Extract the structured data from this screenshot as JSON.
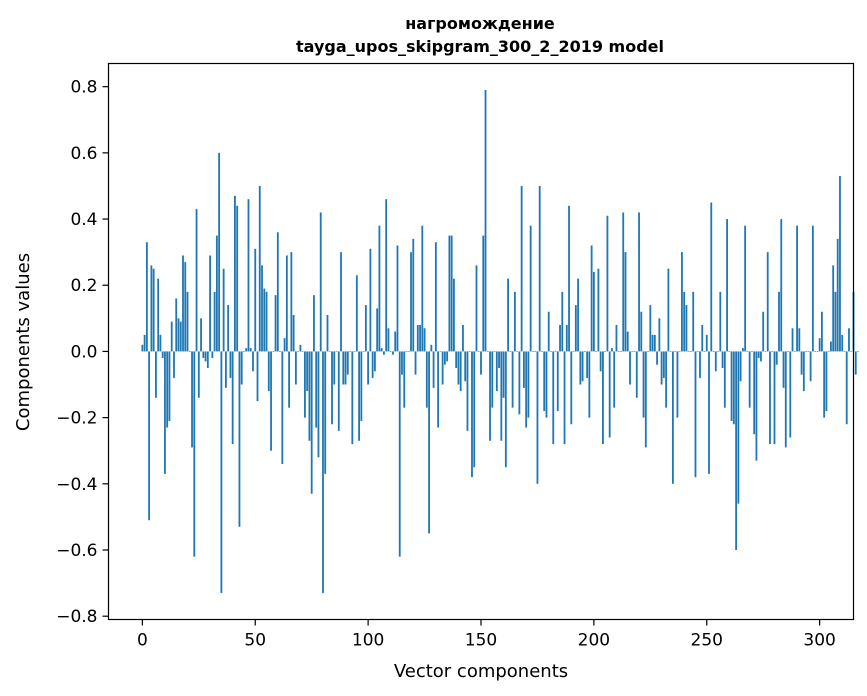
{
  "chart_data": {
    "type": "bar",
    "title_line1": "нагромождение",
    "title_line2": "tayga_upos_skipgram_300_2_2019 model",
    "xlabel": "Vector components",
    "ylabel": "Components values",
    "xlim": [
      -15,
      315
    ],
    "ylim": [
      -0.81,
      0.87
    ],
    "xticks": [
      0,
      50,
      100,
      150,
      200,
      250,
      300
    ],
    "xtick_labels": [
      "0",
      "50",
      "100",
      "150",
      "200",
      "250",
      "300"
    ],
    "yticks": [
      -0.8,
      -0.6,
      -0.4,
      -0.2,
      0.0,
      0.2,
      0.4,
      0.6,
      0.8
    ],
    "ytick_labels": [
      "−0.8",
      "−0.6",
      "−0.4",
      "−0.2",
      "0.0",
      "0.2",
      "0.4",
      "0.6",
      "0.8"
    ],
    "bar_color": "#1f77b4",
    "grid": false,
    "legend": "none",
    "values": [
      0.02,
      0.05,
      0.33,
      -0.51,
      0.26,
      0.25,
      -0.14,
      0.22,
      0.05,
      -0.02,
      -0.37,
      -0.23,
      -0.21,
      0.09,
      -0.08,
      0.16,
      0.1,
      0.09,
      0.29,
      0.27,
      0.18,
      0.0,
      -0.29,
      -0.62,
      0.43,
      -0.14,
      0.1,
      -0.02,
      -0.03,
      -0.05,
      0.29,
      -0.02,
      0.18,
      0.35,
      0.6,
      -0.73,
      0.25,
      -0.11,
      0.14,
      -0.08,
      -0.28,
      0.47,
      0.44,
      -0.53,
      -0.1,
      0.0,
      0.01,
      0.46,
      0.01,
      -0.06,
      0.31,
      -0.15,
      0.5,
      0.26,
      0.19,
      0.18,
      -0.12,
      -0.3,
      0.0,
      0.17,
      0.36,
      0.0,
      -0.34,
      0.04,
      0.29,
      -0.17,
      0.3,
      0.11,
      -0.1,
      0.0,
      0.02,
      0.0,
      -0.2,
      -0.12,
      -0.27,
      -0.43,
      0.17,
      -0.23,
      -0.32,
      0.42,
      -0.73,
      -0.37,
      0.11,
      0.0,
      -0.22,
      -0.1,
      0.0,
      -0.24,
      0.3,
      -0.1,
      -0.1,
      -0.07,
      0.0,
      -0.28,
      0.0,
      0.23,
      -0.27,
      -0.21,
      0.0,
      0.14,
      -0.1,
      0.31,
      -0.08,
      -0.06,
      0.13,
      0.38,
      0.01,
      -0.01,
      0.46,
      0.07,
      0.0,
      -0.01,
      0.06,
      0.32,
      -0.62,
      -0.07,
      -0.17,
      0.0,
      0.0,
      0.3,
      0.34,
      -0.07,
      0.08,
      0.08,
      0.38,
      0.07,
      -0.17,
      -0.55,
      0.02,
      -0.11,
      0.33,
      -0.23,
      0.0,
      -0.1,
      -0.04,
      -0.03,
      0.35,
      0.35,
      0.22,
      -0.05,
      -0.1,
      -0.12,
      0.08,
      -0.09,
      -0.24,
      0.0,
      -0.38,
      -0.35,
      0.26,
      0.0,
      -0.07,
      0.35,
      0.79,
      0.0,
      -0.27,
      -0.17,
      0.0,
      -0.12,
      -0.05,
      -0.27,
      -0.14,
      -0.35,
      0.22,
      0.0,
      -0.17,
      0.18,
      0.0,
      -0.19,
      0.5,
      -0.11,
      -0.23,
      -0.2,
      0.38,
      0.0,
      0.0,
      -0.4,
      0.5,
      0.0,
      -0.18,
      -0.2,
      0.12,
      0.0,
      -0.28,
      0.0,
      -0.18,
      0.08,
      0.18,
      -0.28,
      0.08,
      0.44,
      -0.22,
      0.0,
      0.14,
      0.22,
      -0.1,
      -0.09,
      0.0,
      -0.08,
      -0.2,
      0.32,
      0.24,
      0.0,
      0.25,
      -0.06,
      -0.28,
      0.0,
      0.41,
      -0.26,
      0.01,
      -0.17,
      0.08,
      0.0,
      0.0,
      0.42,
      0.3,
      0.06,
      -0.1,
      0.0,
      0.0,
      -0.14,
      0.42,
      0.12,
      -0.2,
      -0.29,
      0.0,
      0.14,
      0.05,
      0.05,
      -0.04,
      0.1,
      -0.1,
      -0.08,
      -0.17,
      0.25,
      0.0,
      -0.4,
      0.0,
      -0.2,
      0.0,
      0.3,
      0.18,
      0.14,
      0.0,
      0.0,
      0.18,
      -0.38,
      0.0,
      -0.08,
      0.08,
      0.0,
      0.05,
      -0.37,
      0.45,
      0.0,
      -0.06,
      0.0,
      0.18,
      -0.05,
      -0.17,
      0.4,
      0.0,
      -0.21,
      -0.22,
      -0.6,
      -0.46,
      -0.09,
      0.01,
      0.38,
      0.0,
      -0.17,
      0.0,
      -0.25,
      -0.33,
      -0.02,
      -0.03,
      0.12,
      0.0,
      0.3,
      -0.28,
      0.0,
      -0.28,
      -0.04,
      0.18,
      0.4,
      -0.11,
      -0.29,
      0.0,
      -0.26,
      0.07,
      0.0,
      0.38,
      0.07,
      -0.07,
      -0.12,
      0.0,
      0.0,
      -0.09,
      0.38,
      0.0,
      0.0,
      0.04,
      0.12,
      -0.2,
      -0.18,
      0.0,
      0.03,
      0.26,
      0.18,
      0.34,
      0.53,
      0.05,
      0.0,
      -0.22,
      0.07,
      0.0,
      0.18,
      -0.07,
      0.0
    ]
  }
}
